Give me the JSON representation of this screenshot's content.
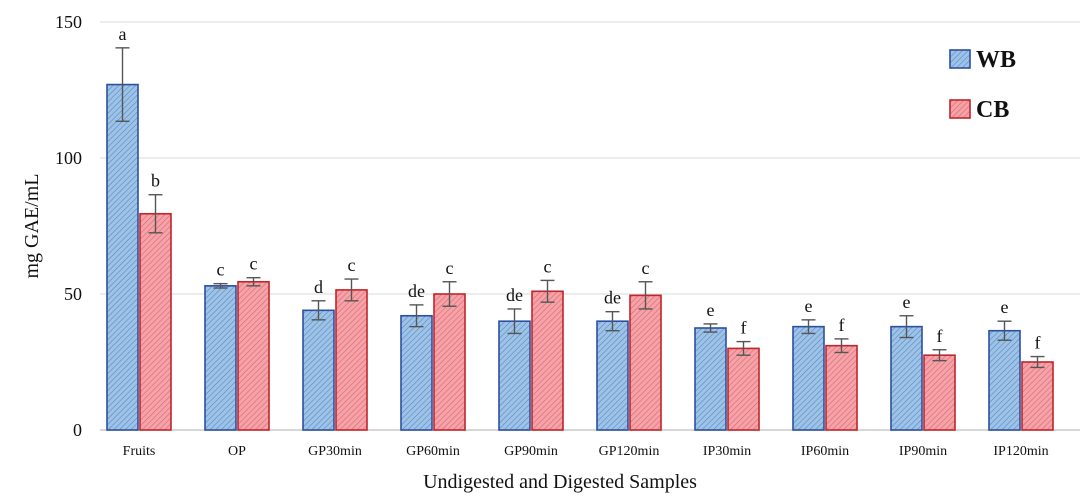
{
  "chart_data": {
    "type": "bar",
    "title": "",
    "xlabel": "Undigested and Digested Samples",
    "ylabel": "mg GAE/mL",
    "ylim": [
      0,
      150
    ],
    "yticks": [
      0,
      50,
      100,
      150
    ],
    "grid": true,
    "legend_position": "top-right",
    "categories": [
      "Fruits",
      "OP",
      "GP30min",
      "GP60min",
      "GP90min",
      "GP120min",
      "IP30min",
      "IP60min",
      "IP90min",
      "IP120min"
    ],
    "series": [
      {
        "name": "WB",
        "color": "#9dc3e6",
        "edge_color": "#2e4fa0",
        "values": [
          127,
          53,
          44,
          42,
          40,
          40,
          37.5,
          38,
          38,
          36.5
        ],
        "errors": [
          13.5,
          0.8,
          3.5,
          4,
          4.5,
          3.5,
          1.5,
          2.5,
          4,
          3.5
        ],
        "sig_labels": [
          "a",
          "c",
          "d",
          "de",
          "de",
          "de",
          "e",
          "e",
          "e",
          "e"
        ]
      },
      {
        "name": "CB",
        "color": "#f4a3a8",
        "edge_color": "#c0262c",
        "values": [
          79.5,
          54.5,
          51.5,
          50,
          51,
          49.5,
          30,
          31,
          27.5,
          25
        ],
        "errors": [
          7,
          1.5,
          4,
          4.5,
          4,
          5,
          2.5,
          2.5,
          2,
          2
        ],
        "sig_labels": [
          "b",
          "c",
          "c",
          "c",
          "c",
          "c",
          "f",
          "f",
          "f",
          "f"
        ]
      }
    ]
  }
}
